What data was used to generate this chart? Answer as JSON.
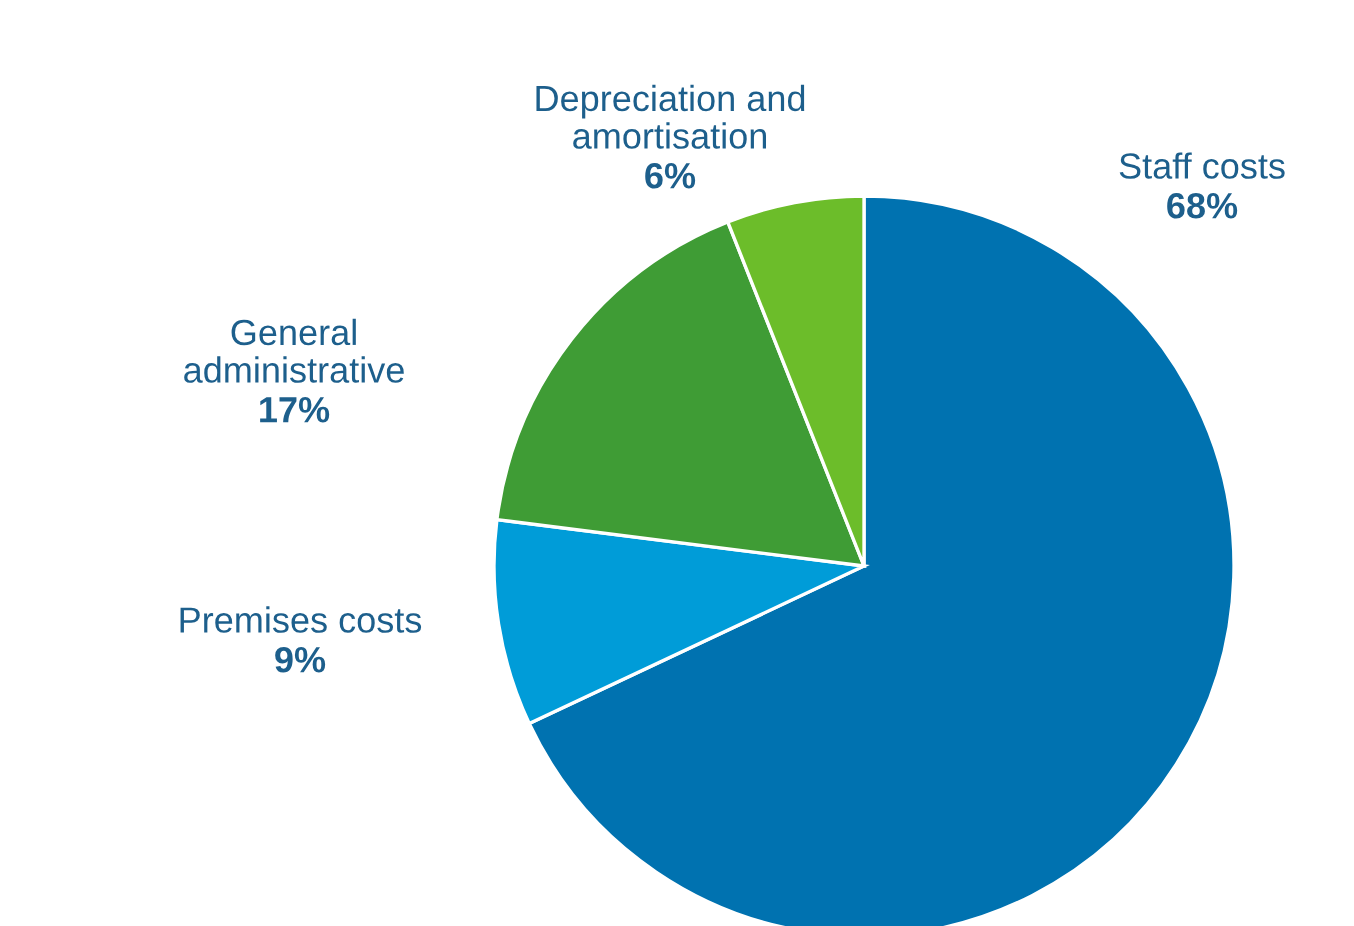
{
  "chart_data": {
    "type": "pie",
    "categories": [
      "Staff costs",
      "Premises costs",
      "General administrative",
      "Depreciation and amortisation"
    ],
    "values": [
      68,
      9,
      17,
      6
    ],
    "colors": [
      "#0072b0",
      "#009cd8",
      "#3f9c35",
      "#6cbd2a"
    ],
    "value_labels": [
      "68%",
      "9%",
      "17%",
      "6%"
    ],
    "legend": false
  }
}
